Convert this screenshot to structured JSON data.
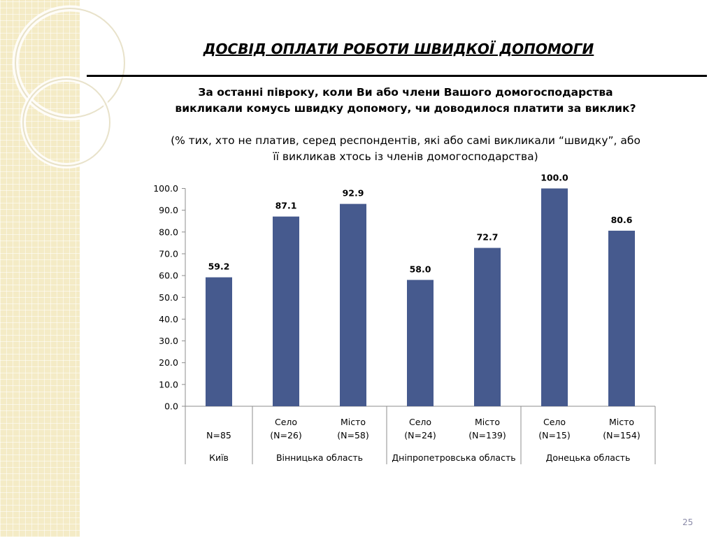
{
  "slide": {
    "title": "ДОСВІД ОПЛАТИ РОБОТИ ШВИДКОЇ ДОПОМОГИ",
    "question": "За останні півроку, коли Ви або члени Вашого домогосподарства викликали комусь швидку допомогу, чи доводилося платити за виклик?",
    "note": "(% тих, хто не платив, серед респондентів, які або самі викликали “швидку”, або її викликав хтось із членів домогосподарства)",
    "page_number": "25"
  },
  "chart_data": {
    "type": "bar",
    "ylim": [
      0,
      100
    ],
    "yticks": [
      "0.0",
      "10.0",
      "20.0",
      "30.0",
      "40.0",
      "50.0",
      "60.0",
      "70.0",
      "80.0",
      "90.0",
      "100.0"
    ],
    "bar_color": "#465a8e",
    "categories": [
      {
        "sub": "",
        "n": "N=85",
        "group": "Київ"
      },
      {
        "sub": "Село",
        "n": "(N=26)",
        "group": "Вінницька область"
      },
      {
        "sub": "Місто",
        "n": "(N=58)",
        "group": "Вінницька область"
      },
      {
        "sub": "Село",
        "n": "(N=24)",
        "group": "Дніпропетровська область"
      },
      {
        "sub": "Місто",
        "n": "(N=139)",
        "group": "Дніпропетровська область"
      },
      {
        "sub": "Село",
        "n": "(N=15)",
        "group": "Донецька область"
      },
      {
        "sub": "Місто",
        "n": "(N=154)",
        "group": "Донецька область"
      }
    ],
    "values": [
      59.2,
      87.1,
      92.9,
      58.0,
      72.7,
      100.0,
      80.6
    ],
    "value_labels": [
      "59.2",
      "87.1",
      "92.9",
      "58.0",
      "72.7",
      "100.0",
      "80.6"
    ],
    "groups": [
      "Київ",
      "Вінницька область",
      "Дніпропетровська область",
      "Донецька область"
    ]
  }
}
